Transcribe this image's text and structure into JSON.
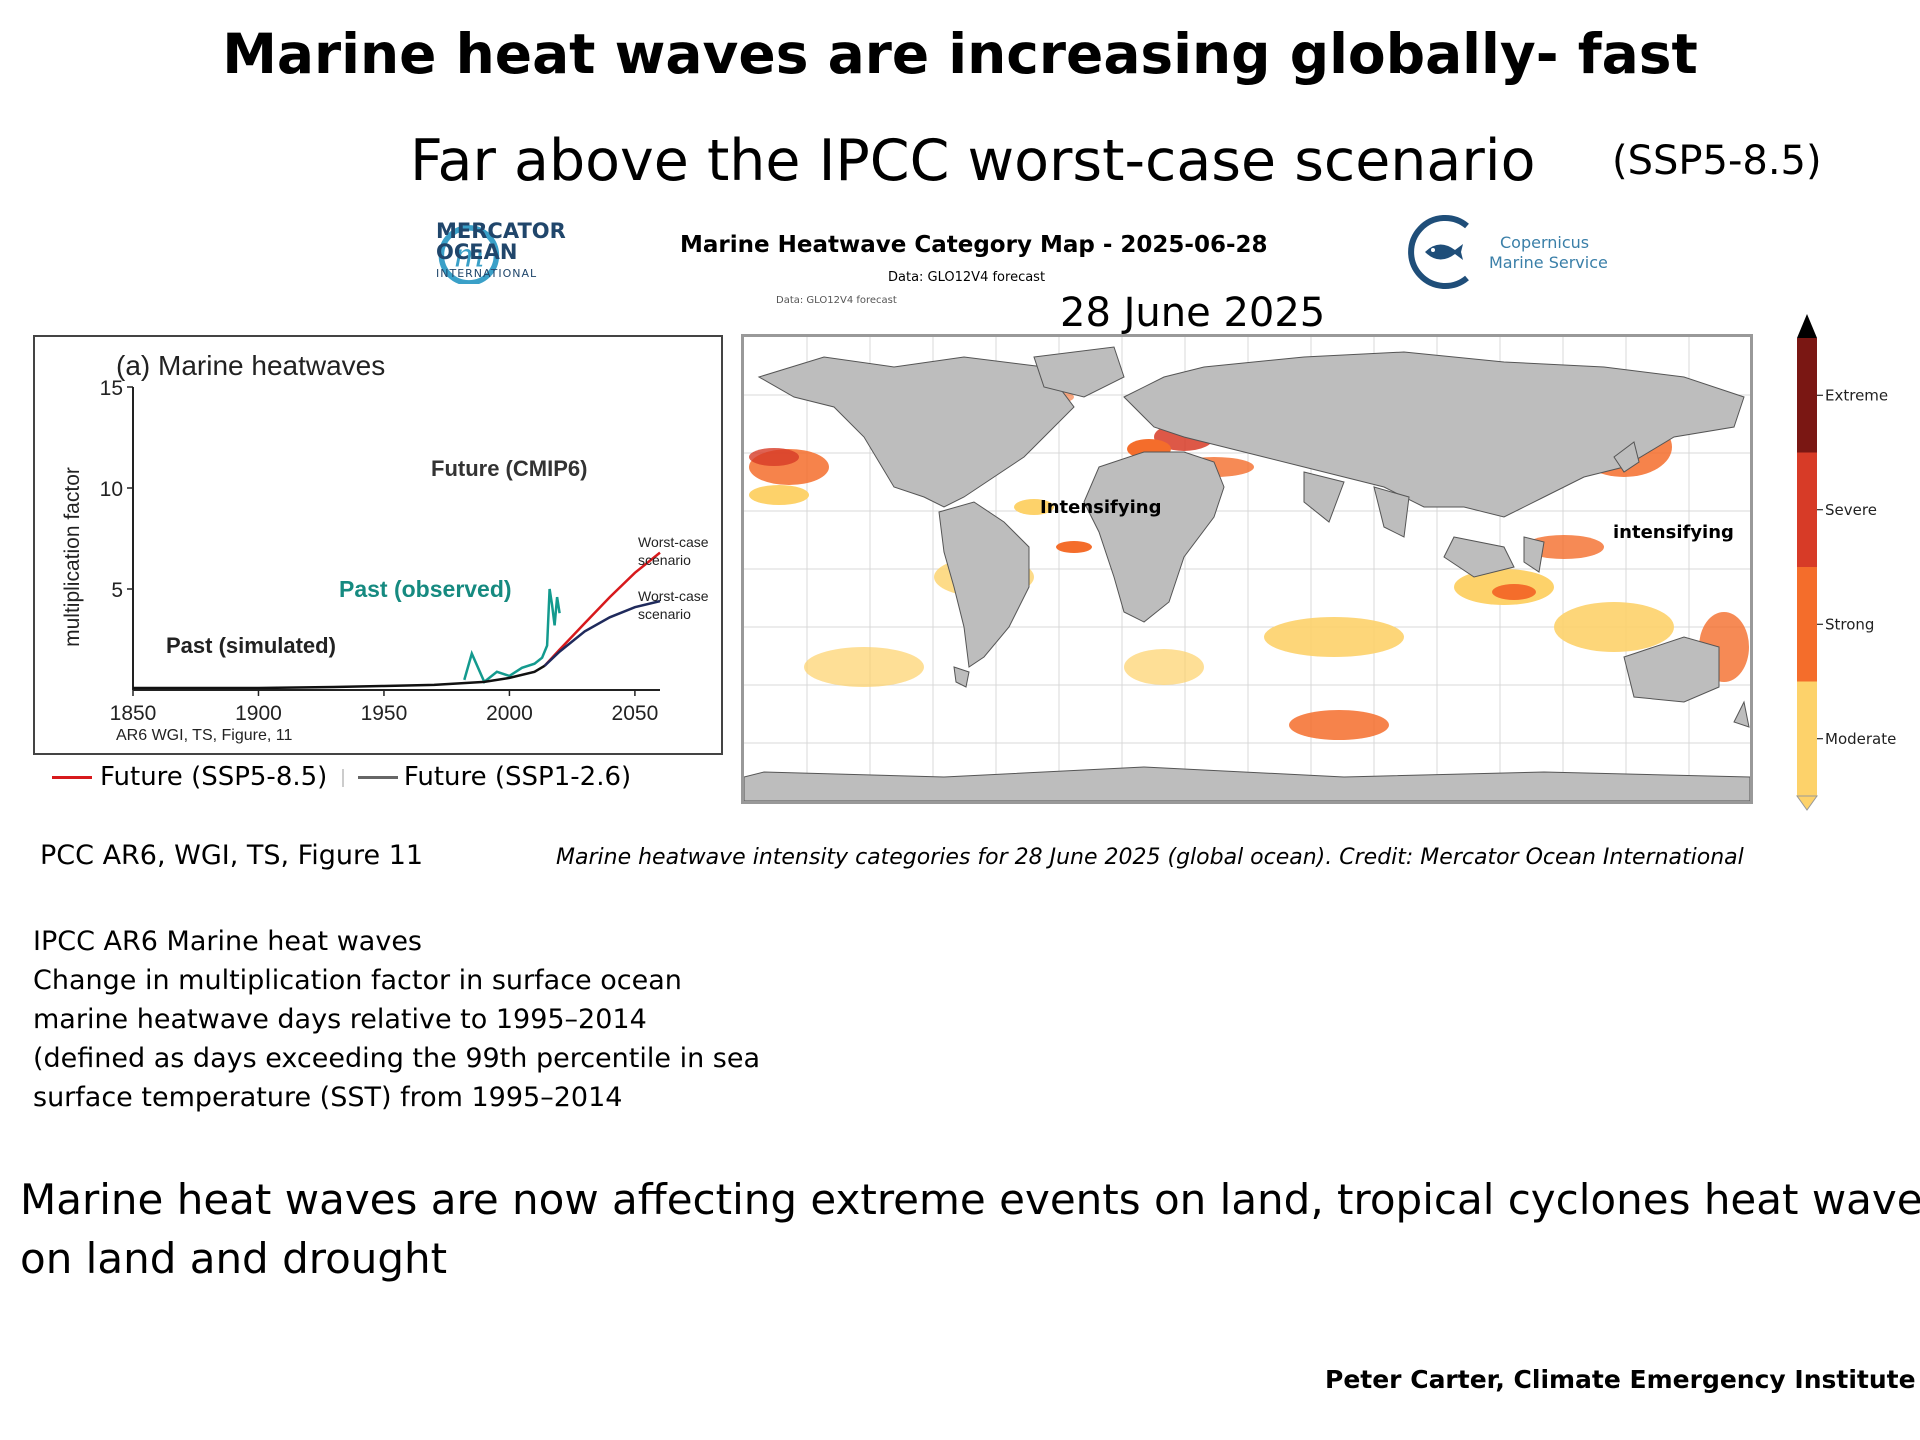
{
  "title": "Marine heat waves are increasing globally- fast",
  "subtitle": "Far above the IPCC worst-case scenario",
  "subtitle_scenario": "(SSP5-8.5)",
  "mercator_logo": {
    "line1": "MERCATOR",
    "line2": "OCEAN",
    "line3": "INTERNATIONAL"
  },
  "copernicus_logo": {
    "line1": "Copernicus",
    "line2": "Marine Service"
  },
  "map": {
    "title": "Marine Heatwave Category Map - 2025-06-28",
    "data_label": "Data: GLO12V4 forecast",
    "data_label_small": "Data: GLO12V4 forecast",
    "date_label": "28 June 2025",
    "annotation_atlantic": "Intensifying",
    "annotation_pacific": "intensifying",
    "colorbar_labels": [
      "Extreme",
      "Severe",
      "Strong",
      "Moderate"
    ],
    "colorbar_colors": [
      "#7a1713",
      "#d73b27",
      "#f46d2b",
      "#fdd26a"
    ],
    "caption": "Marine heatwave intensity categories for 28 June 2025 (global ocean). Credit: Mercator Ocean International"
  },
  "chart_data": {
    "type": "line",
    "title": "(a) Marine heatwaves",
    "ylabel": "multiplication factor",
    "xlim": [
      1850,
      2060
    ],
    "ylim": [
      0,
      15
    ],
    "xticks": [
      "1850",
      "1900",
      "1950",
      "2000",
      "2050"
    ],
    "yticks": [
      "5",
      "10",
      "15"
    ],
    "annotations": {
      "future": "Future (CMIP6)",
      "past_observed": "Past (observed)",
      "past_simulated": "Past (simulated)",
      "worst_case_1": [
        "Worst-case",
        "scenario"
      ],
      "worst_case_2": [
        "Worst-case",
        "scenario"
      ]
    },
    "source": "AR6 WGI, TS, Figure, 11",
    "series": [
      {
        "name": "Future (SSP5-8.5)",
        "color": "#d7191c",
        "x": [
          2014,
          2020,
          2030,
          2040,
          2050,
          2060
        ],
        "y": [
          1.2,
          2.0,
          3.3,
          4.6,
          5.8,
          6.8
        ]
      },
      {
        "name": "Future (SSP1-2.6)",
        "color": "#1f2a5c",
        "x": [
          2014,
          2020,
          2030,
          2040,
          2050,
          2060
        ],
        "y": [
          1.2,
          1.9,
          2.9,
          3.6,
          4.1,
          4.4
        ]
      },
      {
        "name": "Past (observed)",
        "color": "#139a8e",
        "x": [
          1982,
          1985,
          1990,
          1995,
          2000,
          2005,
          2010,
          2013,
          2015,
          2016,
          2017,
          2018,
          2019,
          2020
        ],
        "y": [
          0.5,
          1.8,
          0.4,
          0.9,
          0.7,
          1.1,
          1.3,
          1.6,
          2.2,
          5.0,
          4.2,
          3.2,
          4.6,
          3.8
        ]
      },
      {
        "name": "Past (simulated)",
        "color": "#111111",
        "x": [
          1850,
          1880,
          1900,
          1930,
          1950,
          1970,
          1990,
          2000,
          2010,
          2014
        ],
        "y": [
          0.1,
          0.1,
          0.1,
          0.15,
          0.2,
          0.25,
          0.4,
          0.6,
          0.9,
          1.2
        ]
      }
    ]
  },
  "legend": {
    "ssp585": "Future (SSP5-8.5)",
    "ssp126": "Future (SSP1-2.6)"
  },
  "ipcc_citation": "PCC AR6, WGI, TS, Figure 11",
  "description_lines": [
    "IPCC AR6 Marine heat waves",
    "Change in multiplication factor in surface ocean",
    "marine heatwave days relative to 1995–2014",
    "(defined as days exceeding the 99th percentile in sea",
    "surface temperature (SST) from 1995–2014"
  ],
  "bottom_text_line1": "Marine heat waves are now affecting extreme events on land, tropical cyclones heat waves",
  "bottom_text_line2": "on land  and drought",
  "author": "Peter Carter,  Climate Emergency Institute"
}
